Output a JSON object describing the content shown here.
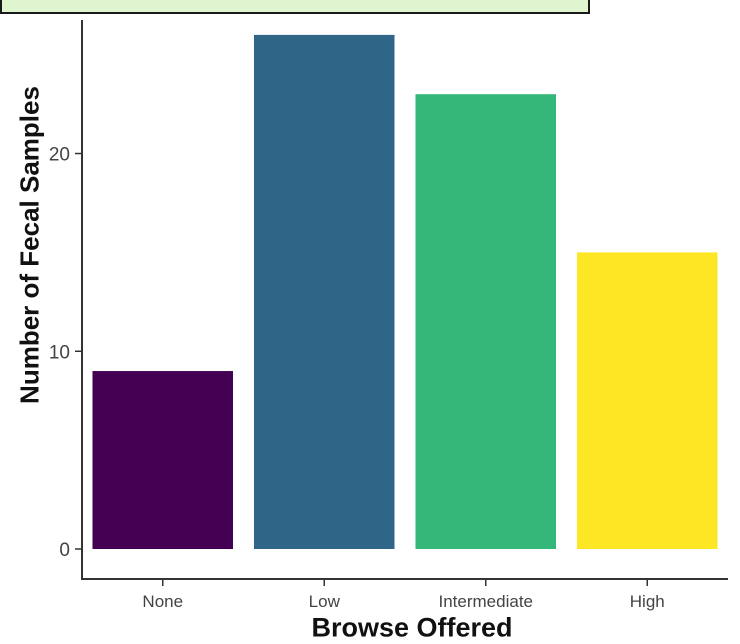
{
  "chart_data": {
    "type": "bar",
    "categories": [
      "None",
      "Low",
      "Intermediate",
      "High"
    ],
    "values": [
      9,
      26,
      23,
      15
    ],
    "xlabel": "Browse Offered",
    "ylabel": "Number of Fecal Samples",
    "ylim": [
      0,
      26.5
    ],
    "yticks": [
      0,
      10,
      20
    ],
    "colors": [
      "#440154",
      "#2f6587",
      "#35b779",
      "#fde725"
    ],
    "grid": false
  }
}
